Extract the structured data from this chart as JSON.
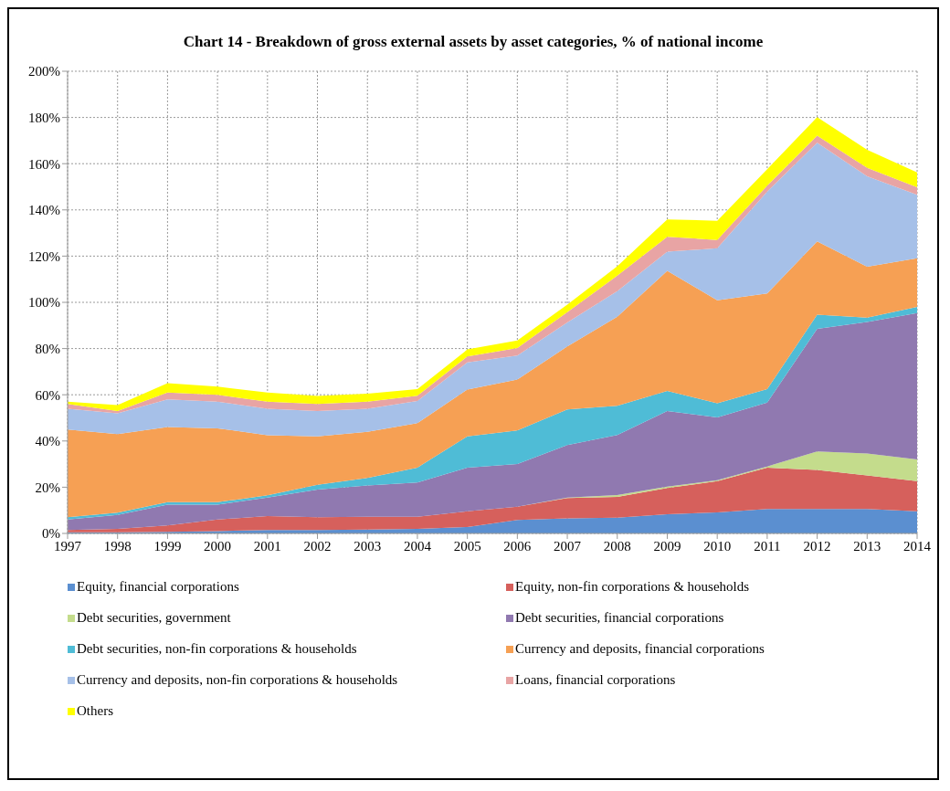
{
  "chart_data": {
    "type": "area",
    "title": "Chart 14 - Breakdown of gross external assets by asset categories, % of national income",
    "categories": [
      "1997",
      "1998",
      "1999",
      "2000",
      "2001",
      "2002",
      "2003",
      "2004",
      "2005",
      "2006",
      "2007",
      "2008",
      "2009",
      "2010",
      "2011",
      "2012",
      "2013",
      "2014"
    ],
    "stacked": true,
    "grid": true,
    "legend": "bottom",
    "ylim": [
      0,
      200
    ],
    "yticks": [
      {
        "value": 0,
        "label": "0%"
      },
      {
        "value": 20,
        "label": "20%"
      },
      {
        "value": 40,
        "label": "40%"
      },
      {
        "value": 60,
        "label": "60%"
      },
      {
        "value": 80,
        "label": "80%"
      },
      {
        "value": 100,
        "label": "100%"
      },
      {
        "value": 120,
        "label": "120%"
      },
      {
        "value": 140,
        "label": "140%"
      },
      {
        "value": 160,
        "label": "160%"
      },
      {
        "value": 180,
        "label": "180%"
      },
      {
        "value": 200,
        "label": "200%"
      }
    ],
    "series": [
      {
        "name": "Equity, financial corporations",
        "color": "#5b8fd0",
        "values": [
          0.5,
          0.5,
          0.7,
          1,
          1.5,
          1.5,
          1.7,
          2,
          2.8,
          5.8,
          6.5,
          6.8,
          8.3,
          9.1,
          10.6,
          10.6,
          10.6,
          9.6
        ]
      },
      {
        "name": "Equity, non-fin corporations & households",
        "color": "#d6605c",
        "values": [
          1,
          1.5,
          2.8,
          5,
          6,
          5.5,
          5.5,
          5.2,
          6.8,
          5.8,
          8.8,
          9,
          11.4,
          13.5,
          17.9,
          16.9,
          14.5,
          13
        ]
      },
      {
        "name": "Debt securities, government",
        "color": "#c4dc8c",
        "values": [
          0,
          0,
          0,
          0,
          0,
          0,
          0,
          0,
          0,
          0,
          0.2,
          0.8,
          0.6,
          0.4,
          0.5,
          8,
          9.5,
          9.4
        ]
      },
      {
        "name": "Debt securities, financial corporations",
        "color": "#9079b0",
        "values": [
          4.5,
          6,
          9,
          6.5,
          8,
          12,
          13.6,
          14.8,
          18.9,
          18.4,
          22.7,
          26,
          32.7,
          27.2,
          27.6,
          53,
          56.9,
          63.4
        ]
      },
      {
        "name": "Debt securities, non-fin corporations & households",
        "color": "#4fbcd6",
        "values": [
          1,
          1,
          1,
          1,
          1,
          2,
          3.2,
          6.5,
          13.5,
          14.6,
          15.5,
          12.6,
          8.7,
          6.1,
          5.9,
          6.2,
          1.9,
          2.6
        ]
      },
      {
        "name": "Currency and deposits, financial corporations",
        "color": "#f6a054",
        "values": [
          38,
          34,
          32.5,
          32,
          26,
          21,
          20,
          19.2,
          20.3,
          22,
          27.2,
          38.6,
          51.9,
          44.6,
          41.4,
          31.7,
          22,
          21.1
        ]
      },
      {
        "name": "Currency and deposits, non-fin corporations & households",
        "color": "#a6c0e8",
        "values": [
          9,
          9,
          12,
          11.5,
          11.5,
          11,
          10,
          9.6,
          11.7,
          10.4,
          10.4,
          11,
          8.3,
          22.5,
          44,
          42.7,
          39.1,
          27.4
        ]
      },
      {
        "name": "Loans, financial corporations",
        "color": "#e8a4a4",
        "values": [
          2,
          1,
          3,
          3,
          3,
          3,
          3,
          2.3,
          2.6,
          3.2,
          4.5,
          6.8,
          6.5,
          3.6,
          2.6,
          3,
          3.7,
          3.3
        ]
      },
      {
        "name": "Others",
        "color": "#ffff00",
        "values": [
          1,
          2.5,
          4,
          3.5,
          4,
          3.5,
          3.5,
          2.9,
          3,
          3.3,
          3.2,
          4,
          7.5,
          8.3,
          7.1,
          8,
          7.8,
          6.4
        ]
      }
    ]
  }
}
